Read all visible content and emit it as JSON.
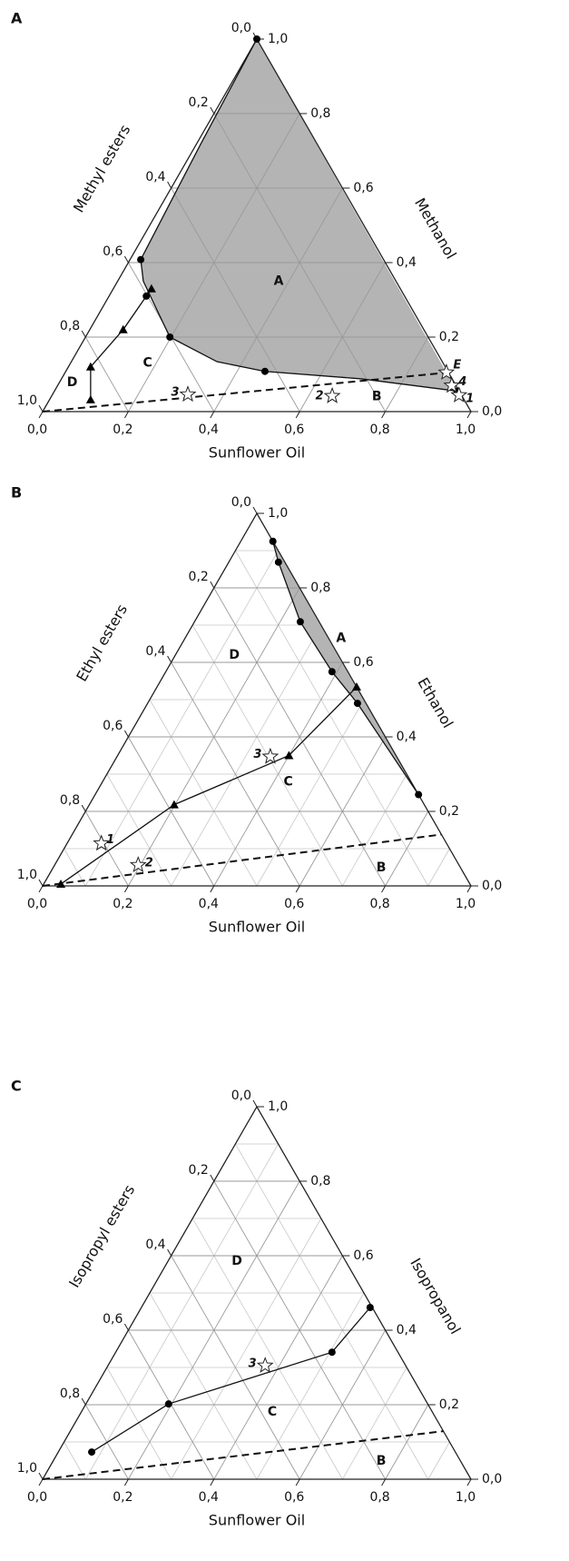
{
  "chart_data": [
    {
      "type": "ternary",
      "panel": "A",
      "xlabel": "Sunflower Oil",
      "ylabel": "Methanol",
      "zlabel": "Methyl esters",
      "xticks": [
        {
          "value": 0,
          "label": "0,0"
        },
        {
          "value": 0.2,
          "label": "0,2"
        },
        {
          "value": 0.4,
          "label": "0,4"
        },
        {
          "value": 0.6,
          "label": "0,6"
        },
        {
          "value": 0.8,
          "label": "0,8"
        },
        {
          "value": 1,
          "label": "1,0"
        }
      ],
      "yticks": [
        {
          "value": 0,
          "label": "0,0"
        },
        {
          "value": 0.2,
          "label": "0,2"
        },
        {
          "value": 0.4,
          "label": "0,4"
        },
        {
          "value": 0.6,
          "label": "0,6"
        },
        {
          "value": 0.8,
          "label": "0,8"
        },
        {
          "value": 1,
          "label": "1,0"
        }
      ],
      "zticks": [
        {
          "value": 0,
          "label": "0,0"
        },
        {
          "value": 0.2,
          "label": "0,2"
        },
        {
          "value": 0.4,
          "label": "0,4"
        },
        {
          "value": 0.6,
          "label": "0,6"
        },
        {
          "value": 0.8,
          "label": "0,8"
        },
        {
          "value": 1,
          "label": "1,0"
        }
      ],
      "grid": true,
      "minor_grid": false,
      "curves": [
        {
          "x": [
            0,
            0.01,
            0.025,
            0.06,
            0.197,
            0.34,
            0.465,
            0.7,
            0.94
          ],
          "y": [
            1,
            0.716,
            0.408,
            0.35,
            0.2,
            0.134,
            0.108,
            0.088,
            0.055
          ],
          "fill": "#b4b4b4",
          "style": "solid"
        },
        {
          "x": [
            0.096,
            0.052,
            0.078,
            0.089
          ],
          "y": [
            0.032,
            0.12,
            0.22,
            0.33
          ],
          "style": "solid"
        },
        {
          "x": [
            0,
            0.895
          ],
          "y": [
            0,
            0.105
          ],
          "style": "dashed"
        }
      ],
      "circles": {
        "x": [
          0,
          0.025,
          0.087,
          0.197,
          0.465,
          0.94
        ],
        "y": [
          1,
          0.408,
          0.31,
          0.2,
          0.108,
          0.055
        ]
      },
      "triangles": {
        "x": [
          0.096,
          0.052,
          0.078,
          0.089
        ],
        "y": [
          0.032,
          0.12,
          0.22,
          0.33
        ]
      },
      "stars": {
        "x": [
          0.316,
          0.655,
          0.89,
          0.95,
          0.92
        ],
        "y": [
          0.046,
          0.042,
          0.105,
          0.044,
          0.07
        ],
        "labels": [
          "3",
          "2",
          "E",
          "1",
          "4"
        ]
      },
      "regions": [
        "A",
        "B",
        "C",
        "D"
      ]
    },
    {
      "type": "ternary",
      "panel": "B",
      "xlabel": "Sunflower Oil",
      "ylabel": "Ethanol",
      "zlabel": "Ethyl esters",
      "xticks": [
        {
          "value": 0,
          "label": "0,0"
        },
        {
          "value": 0.2,
          "label": "0,2"
        },
        {
          "value": 0.4,
          "label": "0,4"
        },
        {
          "value": 0.6,
          "label": "0,6"
        },
        {
          "value": 0.8,
          "label": "0,8"
        },
        {
          "value": 1,
          "label": "1,0"
        }
      ],
      "yticks": [
        {
          "value": 0,
          "label": "0,0"
        },
        {
          "value": 0.2,
          "label": "0,2"
        },
        {
          "value": 0.4,
          "label": "0,4"
        },
        {
          "value": 0.6,
          "label": "0,6"
        },
        {
          "value": 0.8,
          "label": "0,8"
        },
        {
          "value": 1,
          "label": "1,0"
        }
      ],
      "zticks": [
        {
          "value": 0,
          "label": "0,0"
        },
        {
          "value": 0.2,
          "label": "0,2"
        },
        {
          "value": 0.4,
          "label": "0,4"
        },
        {
          "value": 0.6,
          "label": "0,6"
        },
        {
          "value": 0.8,
          "label": "0,8"
        },
        {
          "value": 1,
          "label": "1,0"
        }
      ],
      "grid": true,
      "minor_grid": true,
      "curves": [
        {
          "x": [
            0.075,
            0.116,
            0.247,
            0.388,
            0.49,
            0.755
          ],
          "y": [
            0.925,
            0.869,
            0.709,
            0.575,
            0.49,
            0.245
          ],
          "fill": "#b4b4b4",
          "style": "solid"
        },
        {
          "x": [
            0.04,
            0.198,
            0.4,
            0.466
          ],
          "y": [
            0.005,
            0.218,
            0.35,
            0.534
          ],
          "style": "solid"
        },
        {
          "x": [
            0,
            0.862
          ],
          "y": [
            0,
            0.138
          ],
          "style": "dashed"
        }
      ],
      "circles": {
        "x": [
          0.075,
          0.116,
          0.247,
          0.388,
          0.49,
          0.755
        ],
        "y": [
          0.925,
          0.869,
          0.709,
          0.575,
          0.49,
          0.245
        ]
      },
      "triangles": {
        "x": [
          0.04,
          0.198,
          0.4,
          0.466
        ],
        "y": [
          0.005,
          0.218,
          0.35,
          0.534
        ]
      },
      "stars": {
        "x": [
          0.08,
          0.195,
          0.358
        ],
        "y": [
          0.114,
          0.056,
          0.347
        ],
        "labels": [
          "1",
          "2",
          "3"
        ]
      },
      "regions": [
        "A",
        "B",
        "C",
        "D"
      ]
    },
    {
      "type": "ternary",
      "panel": "C",
      "xlabel": "Sunflower Oil",
      "ylabel": "Isopropanol",
      "zlabel": "Isopropyl esters",
      "xticks": [
        {
          "value": 0,
          "label": "0,0"
        },
        {
          "value": 0.2,
          "label": "0,2"
        },
        {
          "value": 0.4,
          "label": "0,4"
        },
        {
          "value": 0.6,
          "label": "0,6"
        },
        {
          "value": 0.8,
          "label": "0,8"
        },
        {
          "value": 1,
          "label": "1,0"
        }
      ],
      "yticks": [
        {
          "value": 0,
          "label": "0,0"
        },
        {
          "value": 0.2,
          "label": "0,2"
        },
        {
          "value": 0.4,
          "label": "0,4"
        },
        {
          "value": 0.6,
          "label": "0,6"
        },
        {
          "value": 0.8,
          "label": "0,8"
        },
        {
          "value": 1,
          "label": "1,0"
        }
      ],
      "zticks": [
        {
          "value": 0,
          "label": "0,0"
        },
        {
          "value": 0.2,
          "label": "0,2"
        },
        {
          "value": 0.4,
          "label": "0,4"
        },
        {
          "value": 0.6,
          "label": "0,6"
        },
        {
          "value": 0.8,
          "label": "0,8"
        },
        {
          "value": 1,
          "label": "1,0"
        }
      ],
      "grid": true,
      "minor_grid": true,
      "curves": [
        {
          "x": [
            0.078,
            0.193,
            0.505,
            0.534
          ],
          "y": [
            0.073,
            0.202,
            0.341,
            0.461
          ],
          "style": "solid"
        },
        {
          "x": [
            0,
            0.871
          ],
          "y": [
            0,
            0.129
          ],
          "style": "dashed"
        }
      ],
      "circles": {
        "x": [
          0.078,
          0.193,
          0.505,
          0.534
        ],
        "y": [
          0.073,
          0.202,
          0.341,
          0.461
        ]
      },
      "triangles": {
        "x": [],
        "y": []
      },
      "stars": {
        "x": [
          0.367
        ],
        "y": [
          0.305
        ],
        "labels": [
          "3"
        ]
      },
      "regions": [
        "B",
        "C",
        "D"
      ]
    }
  ]
}
